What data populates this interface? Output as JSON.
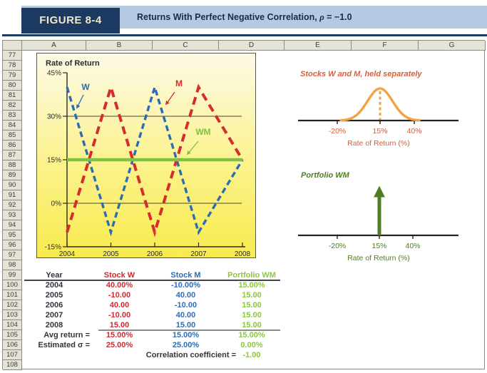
{
  "figure": {
    "label": "FIGURE 8-4",
    "title_prefix": "Returns With Perfect Negative Correlation, ",
    "title_rho": "ρ",
    "title_suffix": " = −1.0",
    "colors": {
      "navy": "#1c3a61",
      "banner_blue": "#b6c9e2",
      "label_text": "#f2e8c9"
    }
  },
  "spreadsheet": {
    "columns": [
      "A",
      "B",
      "C",
      "D",
      "E",
      "F",
      "G"
    ],
    "rows": [
      77,
      78,
      79,
      80,
      81,
      82,
      83,
      84,
      85,
      86,
      87,
      88,
      89,
      90,
      91,
      92,
      93,
      94,
      95,
      96,
      97,
      98,
      99,
      100,
      101,
      102,
      103,
      104,
      105,
      106,
      107,
      108
    ]
  },
  "chart_data": {
    "type": "line",
    "title": "Rate of Return",
    "x": [
      2004,
      2005,
      2006,
      2007,
      2008
    ],
    "yticks": [
      45,
      30,
      15,
      0,
      -15
    ],
    "ytick_labels": [
      "45%",
      "30%",
      "15%",
      "0%",
      "-15%"
    ],
    "gridlines": [
      30,
      15,
      0
    ],
    "ylim": [
      -15,
      45
    ],
    "series": [
      {
        "name": "W",
        "color": "#2d6cb3",
        "style": "dashed",
        "values": [
          40,
          -10,
          40,
          -10,
          15
        ]
      },
      {
        "name": "M",
        "color": "#d42d30",
        "style": "dashed",
        "values": [
          -10,
          40,
          -10,
          40,
          15
        ]
      },
      {
        "name": "WM",
        "color": "#7fc241",
        "style": "solid",
        "values": [
          15,
          15,
          15,
          15,
          15
        ]
      }
    ]
  },
  "side_top": {
    "title": "Stocks W and M, held separately",
    "tick_labels": [
      "-20%",
      "15%",
      "40%"
    ],
    "xlabel": "Rate of Return (%)",
    "curve_color": "#f2a444",
    "text_color": "#d45f3c"
  },
  "side_bottom": {
    "title": "Portfolio WM",
    "tick_labels": [
      "-20%",
      "15%",
      "40%"
    ],
    "xlabel": "Rate of Return (%)",
    "arrow_color": "#4f7d24",
    "text_color": "#4f7d24"
  },
  "table": {
    "headers": [
      "Year",
      "Stock W",
      "Stock M",
      "Portfolio WM"
    ],
    "header_colors": [
      "#34343e",
      "#ce2b30",
      "#2d6cb3",
      "#8cc63f"
    ],
    "rows": [
      [
        "2004",
        "40.00%",
        "-10.00%",
        "15.00%"
      ],
      [
        "2005",
        "-10.00",
        "40.00",
        "15.00"
      ],
      [
        "2006",
        "40.00",
        "-10.00",
        "15.00"
      ],
      [
        "2007",
        "-10.00",
        "40.00",
        "15.00"
      ],
      [
        "2008",
        "15.00",
        "15.00",
        "15.00"
      ]
    ],
    "summary": [
      {
        "label": "Avg return =",
        "values": [
          "15.00%",
          "15.00%",
          "15.00%"
        ]
      },
      {
        "label": "Estimated σ =",
        "values": [
          "25.00%",
          "25.00%",
          "0.00%"
        ]
      }
    ],
    "correlation": {
      "label": "Correlation coefficient =",
      "value": "-1.00"
    }
  }
}
